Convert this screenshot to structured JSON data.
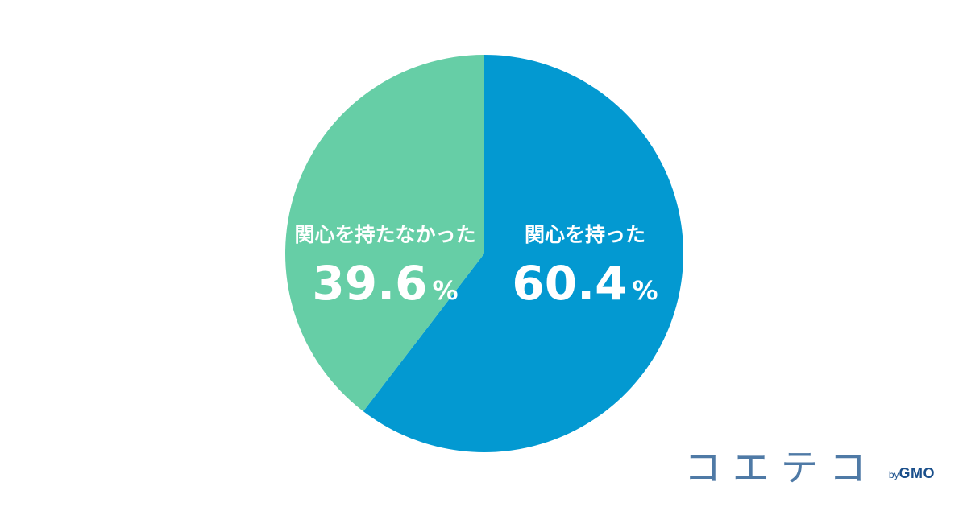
{
  "chart_data": {
    "type": "pie",
    "categories": [
      "関心を持った",
      "関心を持たなかった"
    ],
    "values": [
      60.4,
      39.6
    ],
    "value_labels": [
      "60.4",
      "39.6"
    ],
    "unit": "%",
    "colors": [
      "#0399d1",
      "#66cea6"
    ],
    "start_angle_deg": 0,
    "direction": "clockwise",
    "title": "",
    "legend": "none"
  },
  "brand": {
    "name": "コエテコ",
    "by": "by",
    "company": "GMO"
  }
}
